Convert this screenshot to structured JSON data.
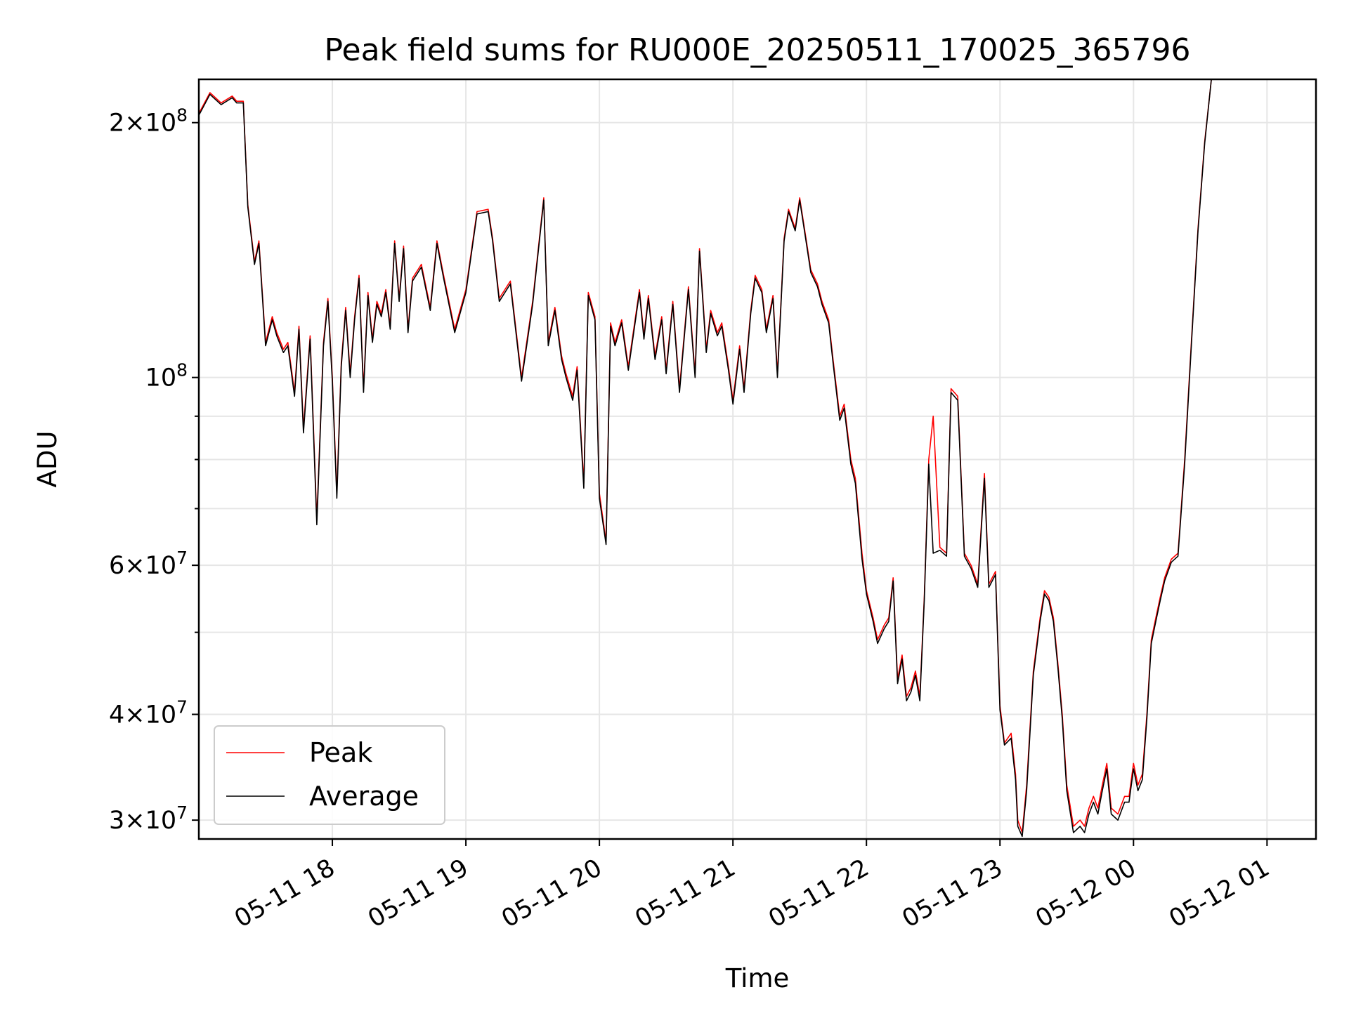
{
  "chart_data": {
    "type": "line",
    "title": "Peak field sums for RU000E_20250511_170025_365796",
    "xlabel": "Time",
    "ylabel": "ADU",
    "yscale": "log",
    "ylim": [
      28500000,
      225000000
    ],
    "xlim": [
      "05-11 17:00",
      "05-12 01:22"
    ],
    "x_ticks": [
      {
        "label": "05-11 18",
        "t": "05-11 18:00"
      },
      {
        "label": "05-11 19",
        "t": "05-11 19:00"
      },
      {
        "label": "05-11 20",
        "t": "05-11 20:00"
      },
      {
        "label": "05-11 21",
        "t": "05-11 21:00"
      },
      {
        "label": "05-11 22",
        "t": "05-11 22:00"
      },
      {
        "label": "05-11 23",
        "t": "05-11 23:00"
      },
      {
        "label": "05-12 00",
        "t": "05-12 00:00"
      },
      {
        "label": "05-12 01",
        "t": "05-12 01:00"
      }
    ],
    "y_major_ticks": [
      {
        "value": 30000000,
        "mantissa": "3",
        "exp": "7"
      },
      {
        "value": 40000000,
        "mantissa": "4",
        "exp": "7"
      },
      {
        "value": 60000000,
        "mantissa": "6",
        "exp": "7"
      },
      {
        "value": 100000000,
        "mantissa": "",
        "exp": "8"
      },
      {
        "value": 200000000,
        "mantissa": "2",
        "exp": "8"
      }
    ],
    "y_minor_ticks": [
      50000000,
      70000000,
      80000000,
      90000000
    ],
    "grid": true,
    "legend_position": "lower-left",
    "series": [
      {
        "name": "Peak",
        "color": "#ff0000"
      },
      {
        "name": "Average",
        "color": "#000000"
      }
    ],
    "x": [
      "05-11 17:00",
      "05-11 17:05",
      "05-11 17:10",
      "05-11 17:15",
      "05-11 17:17",
      "05-11 17:20",
      "05-11 17:22",
      "05-11 17:25",
      "05-11 17:27",
      "05-11 17:30",
      "05-11 17:33",
      "05-11 17:35",
      "05-11 17:38",
      "05-11 17:40",
      "05-11 17:43",
      "05-11 17:45",
      "05-11 17:47",
      "05-11 17:50",
      "05-11 17:53",
      "05-11 17:56",
      "05-11 17:58",
      "05-11 18:00",
      "05-11 18:02",
      "05-11 18:04",
      "05-11 18:06",
      "05-11 18:08",
      "05-11 18:10",
      "05-11 18:12",
      "05-11 18:14",
      "05-11 18:16",
      "05-11 18:18",
      "05-11 18:20",
      "05-11 18:22",
      "05-11 18:24",
      "05-11 18:26",
      "05-11 18:28",
      "05-11 18:30",
      "05-11 18:32",
      "05-11 18:34",
      "05-11 18:36",
      "05-11 18:40",
      "05-11 18:44",
      "05-11 18:47",
      "05-11 18:50",
      "05-11 18:55",
      "05-11 19:00",
      "05-11 19:05",
      "05-11 19:10",
      "05-11 19:12",
      "05-11 19:15",
      "05-11 19:20",
      "05-11 19:25",
      "05-11 19:30",
      "05-11 19:35",
      "05-11 19:37",
      "05-11 19:40",
      "05-11 19:43",
      "05-11 19:45",
      "05-11 19:48",
      "05-11 19:50",
      "05-11 19:53",
      "05-11 19:55",
      "05-11 19:58",
      "05-11 20:00",
      "05-11 20:03",
      "05-11 20:05",
      "05-11 20:07",
      "05-11 20:10",
      "05-11 20:13",
      "05-11 20:15",
      "05-11 20:18",
      "05-11 20:20",
      "05-11 20:22",
      "05-11 20:25",
      "05-11 20:28",
      "05-11 20:30",
      "05-11 20:33",
      "05-11 20:36",
      "05-11 20:40",
      "05-11 20:43",
      "05-11 20:45",
      "05-11 20:48",
      "05-11 20:50",
      "05-11 20:53",
      "05-11 20:55",
      "05-11 20:58",
      "05-11 21:00",
      "05-11 21:03",
      "05-11 21:05",
      "05-11 21:08",
      "05-11 21:10",
      "05-11 21:13",
      "05-11 21:15",
      "05-11 21:18",
      "05-11 21:20",
      "05-11 21:23",
      "05-11 21:25",
      "05-11 21:28",
      "05-11 21:30",
      "05-11 21:33",
      "05-11 21:35",
      "05-11 21:38",
      "05-11 21:40",
      "05-11 21:43",
      "05-11 21:45",
      "05-11 21:48",
      "05-11 21:50",
      "05-11 21:53",
      "05-11 21:55",
      "05-11 21:58",
      "05-11 22:00",
      "05-11 22:03",
      "05-11 22:05",
      "05-11 22:08",
      "05-11 22:10",
      "05-11 22:12",
      "05-11 22:14",
      "05-11 22:16",
      "05-11 22:18",
      "05-11 22:20",
      "05-11 22:22",
      "05-11 22:24",
      "05-11 22:26",
      "05-11 22:28",
      "05-11 22:30",
      "05-11 22:33",
      "05-11 22:36",
      "05-11 22:38",
      "05-11 22:41",
      "05-11 22:44",
      "05-11 22:47",
      "05-11 22:50",
      "05-11 22:53",
      "05-11 22:55",
      "05-11 22:58",
      "05-11 23:00",
      "05-11 23:02",
      "05-11 23:05",
      "05-11 23:07",
      "05-11 23:08",
      "05-11 23:10",
      "05-11 23:12",
      "05-11 23:15",
      "05-11 23:18",
      "05-11 23:20",
      "05-11 23:22",
      "05-11 23:24",
      "05-11 23:26",
      "05-11 23:28",
      "05-11 23:30",
      "05-11 23:33",
      "05-11 23:36",
      "05-11 23:38",
      "05-11 23:40",
      "05-11 23:42",
      "05-11 23:44",
      "05-11 23:46",
      "05-11 23:48",
      "05-11 23:50",
      "05-11 23:53",
      "05-11 23:56",
      "05-11 23:58",
      "05-12 00:00",
      "05-12 00:02",
      "05-12 00:04",
      "05-12 00:06",
      "05-12 00:08",
      "05-12 00:10",
      "05-12 00:12",
      "05-12 00:14",
      "05-12 00:17",
      "05-12 00:20",
      "05-12 00:23",
      "05-12 00:26",
      "05-12 00:29",
      "05-12 00:32",
      "05-12 00:35",
      "05-12 00:38",
      "05-12 00:41",
      "05-12 00:44",
      "05-12 00:47",
      "05-12 00:50",
      "05-12 00:53",
      "05-12 00:56",
      "05-12 00:58",
      "05-12 01:00",
      "05-12 01:02",
      "05-12 01:04",
      "05-12 01:06",
      "05-12 01:08",
      "05-12 01:10",
      "05-12 01:12"
    ],
    "peak": [
      205000000,
      217000000,
      211000000,
      215000000,
      212000000,
      212000000,
      160000000,
      137000000,
      145000000,
      110000000,
      118000000,
      113000000,
      108000000,
      110000000,
      96000000,
      115000000,
      87000000,
      112000000,
      68000000,
      110000000,
      124000000,
      100000000,
      73000000,
      104000000,
      121000000,
      101000000,
      118000000,
      132000000,
      97000000,
      126000000,
      111000000,
      123000000,
      119000000,
      127000000,
      115000000,
      145000000,
      124000000,
      143000000,
      114000000,
      131000000,
      136000000,
      121000000,
      145000000,
      132000000,
      114000000,
      127000000,
      157000000,
      158000000,
      146000000,
      124000000,
      130000000,
      100000000,
      123000000,
      163000000,
      110000000,
      121000000,
      106000000,
      101000000,
      95000000,
      103000000,
      75000000,
      126000000,
      118000000,
      73000000,
      64000000,
      116000000,
      110000000,
      117000000,
      103000000,
      112000000,
      127000000,
      112000000,
      125000000,
      106000000,
      118000000,
      102000000,
      123000000,
      97000000,
      128000000,
      101000000,
      142000000,
      108000000,
      120000000,
      113000000,
      116000000,
      103000000,
      94000000,
      109000000,
      97000000,
      120000000,
      132000000,
      127000000,
      114000000,
      125000000,
      101000000,
      146000000,
      158000000,
      150000000,
      163000000,
      145000000,
      134000000,
      129000000,
      123000000,
      117000000,
      105000000,
      90000000,
      93000000,
      80000000,
      76000000,
      62000000,
      56000000,
      52000000,
      49000000,
      51000000,
      52000000,
      58000000,
      44000000,
      47000000,
      42000000,
      43000000,
      45000000,
      42000000,
      55000000,
      80000000,
      90000000,
      63000000,
      62000000,
      97000000,
      95000000,
      62000000,
      60000000,
      57000000,
      77000000,
      57000000,
      59000000,
      41000000,
      37000000,
      38000000,
      34000000,
      30000000,
      29000000,
      33000000,
      45000000,
      52000000,
      56000000,
      55000000,
      52000000,
      46000000,
      40000000,
      33000000,
      29500000,
      30000000,
      29500000,
      31000000,
      32000000,
      31000000,
      33000000,
      35000000,
      31000000,
      30500000,
      32000000,
      32000000,
      35000000,
      33000000,
      34000000,
      40000000,
      49000000,
      52000000,
      55000000,
      58000000,
      61000000,
      62000000,
      80000000,
      110000000,
      150000000,
      190000000,
      225000000,
      225000000,
      225000000,
      225000000,
      225000000,
      225000000,
      225000000,
      225000000,
      225000000,
      225000000
    ],
    "average": [
      204000000,
      216000000,
      210000000,
      214000000,
      211000000,
      211000000,
      159000000,
      136000000,
      144000000,
      109000000,
      117000000,
      112000000,
      107000000,
      109000000,
      95000000,
      114000000,
      86000000,
      111000000,
      67000000,
      109000000,
      123000000,
      99000000,
      72000000,
      103000000,
      120000000,
      100000000,
      117000000,
      131000000,
      96000000,
      125000000,
      110000000,
      122000000,
      118000000,
      126000000,
      114000000,
      144000000,
      123000000,
      142000000,
      113000000,
      130000000,
      135000000,
      120000000,
      144000000,
      131000000,
      113000000,
      126000000,
      156000000,
      157000000,
      145000000,
      123000000,
      129000000,
      99000000,
      122000000,
      162000000,
      109000000,
      120000000,
      105000000,
      100000000,
      94000000,
      102000000,
      74000000,
      125000000,
      117000000,
      72000000,
      63500000,
      115000000,
      109000000,
      116000000,
      102000000,
      111000000,
      126000000,
      111000000,
      124000000,
      105000000,
      117000000,
      101000000,
      122000000,
      96000000,
      127000000,
      100000000,
      141000000,
      107000000,
      119000000,
      112000000,
      115000000,
      102000000,
      93000000,
      108000000,
      96000000,
      119000000,
      131000000,
      126000000,
      113000000,
      124000000,
      100000000,
      145000000,
      157000000,
      149000000,
      162000000,
      144000000,
      133000000,
      128000000,
      122000000,
      116000000,
      104000000,
      89000000,
      92000000,
      79000000,
      75000000,
      61000000,
      55500000,
      51500000,
      48500000,
      50500000,
      51500000,
      57500000,
      43500000,
      46500000,
      41500000,
      42500000,
      44500000,
      41500000,
      54500000,
      79000000,
      62000000,
      62500000,
      61500000,
      96000000,
      94000000,
      61500000,
      59500000,
      56500000,
      76000000,
      56500000,
      58500000,
      40500000,
      36800000,
      37500000,
      33500000,
      29500000,
      28700000,
      32500000,
      44500000,
      51500000,
      55500000,
      54500000,
      51500000,
      45500000,
      39500000,
      32500000,
      29000000,
      29500000,
      29000000,
      30500000,
      31500000,
      30500000,
      32500000,
      34500000,
      30500000,
      30000000,
      31500000,
      31500000,
      34500000,
      32500000,
      33500000,
      39500000,
      48500000,
      51500000,
      54500000,
      57500000,
      60500000,
      61500000,
      79000000,
      109000000,
      149000000,
      189000000,
      225000000,
      225000000,
      225000000,
      225000000,
      225000000,
      225000000,
      225000000,
      225000000,
      225000000,
      225000000
    ]
  }
}
